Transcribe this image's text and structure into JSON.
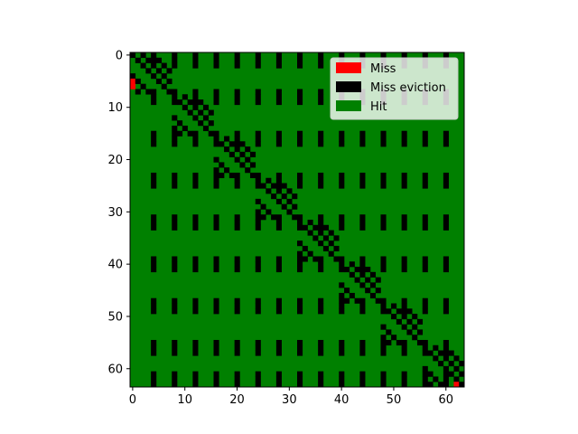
{
  "chart_data": {
    "type": "heatmap",
    "title": "",
    "xlabel": "",
    "ylabel": "",
    "grid_size": [
      64,
      64
    ],
    "x_ticks": [
      0,
      10,
      20,
      30,
      40,
      50,
      60
    ],
    "y_ticks": [
      0,
      10,
      20,
      30,
      40,
      50,
      60
    ],
    "xlim": [
      -0.5,
      63.5
    ],
    "ylim": [
      63.5,
      -0.5
    ],
    "legend_position": "upper right",
    "legend": [
      {
        "label": "Miss",
        "color": "#ff0000"
      },
      {
        "label": "Miss eviction",
        "color": "#000000"
      },
      {
        "label": "Hit",
        "color": "#008000"
      }
    ],
    "background_value": "Hit",
    "miss_cells": [
      [
        0,
        5
      ],
      [
        0,
        6
      ],
      [
        62,
        63
      ]
    ],
    "miss_eviction_cells": {
      "column_segments": {
        "rows": [
          [
            0,
            2
          ],
          [
            7,
            9
          ],
          [
            15,
            17
          ],
          [
            23,
            25
          ],
          [
            31,
            33
          ],
          [
            39,
            41
          ],
          [
            47,
            49
          ],
          [
            55,
            57
          ],
          [
            61,
            63
          ]
        ],
        "columns": [
          4,
          8,
          12,
          16,
          20,
          24,
          28,
          32,
          36,
          40,
          44,
          48,
          52,
          56,
          60
        ]
      },
      "diagonal_blocks": [
        {
          "rows": [
            0,
            7
          ],
          "cols": [
            0,
            7
          ]
        },
        {
          "rows": [
            8,
            15
          ],
          "cols": [
            8,
            15
          ]
        },
        {
          "rows": [
            16,
            23
          ],
          "cols": [
            16,
            23
          ]
        },
        {
          "rows": [
            24,
            31
          ],
          "cols": [
            24,
            31
          ]
        },
        {
          "rows": [
            32,
            39
          ],
          "cols": [
            32,
            39
          ]
        },
        {
          "rows": [
            40,
            47
          ],
          "cols": [
            40,
            47
          ]
        },
        {
          "rows": [
            48,
            55
          ],
          "cols": [
            48,
            55
          ]
        },
        {
          "rows": [
            56,
            63
          ],
          "cols": [
            56,
            63
          ]
        }
      ]
    }
  }
}
